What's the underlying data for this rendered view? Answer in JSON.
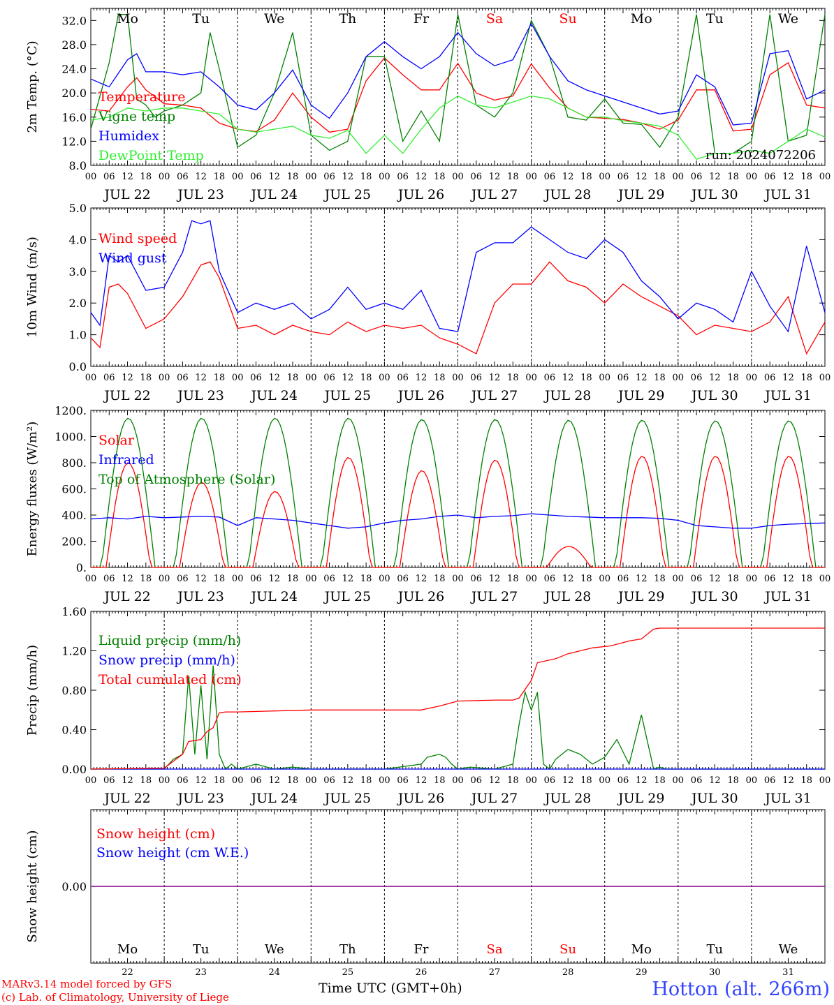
{
  "run_label": "run: 2024072206",
  "station": "Hotton (alt. 266m)",
  "credit_line1": "MARv3.14 model forced by GFS",
  "credit_line2": "(c) Lab. of Climatology, University of Liege",
  "x_axis_title": "Time UTC (GMT+0h)",
  "hour_ticks": [
    "00",
    "06",
    "12",
    "18"
  ],
  "date_labels": [
    "JUL 22",
    "JUL 23",
    "JUL 24",
    "JUL 25",
    "JUL 26",
    "JUL 27",
    "JUL 28",
    "JUL 29",
    "JUL 30",
    "JUL 31"
  ],
  "day_numbers": [
    "22",
    "23",
    "24",
    "25",
    "26",
    "27",
    "28",
    "29",
    "30",
    "31"
  ],
  "weekdays": [
    {
      "label": "Mo",
      "color": "#000000"
    },
    {
      "label": "Tu",
      "color": "#000000"
    },
    {
      "label": "We",
      "color": "#000000"
    },
    {
      "label": "Th",
      "color": "#000000"
    },
    {
      "label": "Fr",
      "color": "#000000"
    },
    {
      "label": "Sa",
      "color": "#ff0000"
    },
    {
      "label": "Su",
      "color": "#ff0000"
    },
    {
      "label": "Mo",
      "color": "#000000"
    },
    {
      "label": "Tu",
      "color": "#000000"
    },
    {
      "label": "We",
      "color": "#000000"
    }
  ],
  "colors": {
    "red": "#ff0000",
    "green": "#008000",
    "blue": "#0000ff",
    "lightgreen": "#33ee33",
    "purple": "#880088"
  },
  "chart_data": [
    {
      "type": "line",
      "ylabel": "2m Temp. (°C)",
      "ylim": [
        8,
        34
      ],
      "yticks": [
        "8.0",
        "12.0",
        "16.0",
        "20.0",
        "24.0",
        "28.0",
        "32.0"
      ],
      "yticks_values": [
        8,
        12,
        16,
        20,
        24,
        28,
        32
      ],
      "x_unit": "hours since JUL 22 00 UTC",
      "xlim": [
        0,
        240
      ],
      "series": [
        {
          "name": "Temperature",
          "color": "#ff0000",
          "x": [
            0,
            6,
            12,
            15,
            18,
            24,
            30,
            36,
            42,
            48,
            54,
            60,
            66,
            72,
            78,
            84,
            90,
            96,
            102,
            108,
            114,
            120,
            126,
            132,
            138,
            144,
            150,
            156,
            162,
            168,
            174,
            180,
            186,
            192,
            198,
            204,
            210,
            216,
            222,
            228,
            234,
            240
          ],
          "y": [
            17.3,
            17,
            21,
            22.5,
            20.5,
            18.2,
            18,
            17.5,
            15,
            14,
            13.6,
            15.5,
            20,
            16,
            13.5,
            14,
            22,
            25.8,
            23,
            20.5,
            20.5,
            24.9,
            20,
            18.8,
            19.5,
            24.8,
            20.8,
            17.5,
            16,
            15.8,
            15.6,
            15,
            14,
            15.5,
            20.5,
            20.5,
            13.7,
            14,
            23,
            25,
            18,
            17.5
          ]
        },
        {
          "name": "Vigne temp",
          "color": "#008000",
          "x": [
            0,
            6,
            9,
            12,
            15,
            18,
            21,
            24,
            30,
            36,
            39,
            42,
            48,
            54,
            60,
            66,
            72,
            78,
            84,
            90,
            96,
            102,
            108,
            114,
            120,
            126,
            132,
            138,
            144,
            150,
            156,
            162,
            168,
            174,
            180,
            186,
            192,
            198,
            204,
            210,
            216,
            222,
            228,
            234,
            240
          ],
          "y": [
            14,
            25,
            33,
            33,
            19,
            18,
            16,
            17,
            18,
            20,
            30,
            24,
            11,
            13,
            20,
            30,
            13,
            10.5,
            12,
            26,
            26,
            12,
            17,
            12,
            33,
            18,
            16,
            20,
            32,
            26,
            16,
            15.5,
            19,
            15,
            14.8,
            11,
            16,
            33,
            10,
            10,
            12,
            33,
            12,
            13,
            33
          ]
        },
        {
          "name": "Humidex",
          "color": "#0000ff",
          "x": [
            0,
            6,
            12,
            15,
            18,
            24,
            30,
            36,
            42,
            48,
            54,
            60,
            66,
            72,
            78,
            84,
            90,
            96,
            102,
            108,
            114,
            120,
            126,
            132,
            138,
            144,
            150,
            156,
            162,
            168,
            174,
            180,
            186,
            192,
            198,
            204,
            210,
            216,
            222,
            228,
            234,
            240
          ],
          "y": [
            22.3,
            21,
            25.5,
            26.5,
            23.5,
            23.5,
            23,
            23.5,
            21,
            18,
            17.2,
            20,
            23.8,
            18,
            15.8,
            20,
            26,
            28.5,
            26,
            24,
            26,
            30,
            26.5,
            24.5,
            25.5,
            31.5,
            26,
            22,
            20.5,
            19.5,
            18.5,
            17.5,
            16.5,
            17,
            23,
            21,
            14.7,
            15,
            26.5,
            27,
            19,
            20.5
          ]
        },
        {
          "name": "DewPoint Temp",
          "color": "#33ee33",
          "x": [
            0,
            6,
            12,
            18,
            24,
            30,
            36,
            42,
            48,
            54,
            60,
            66,
            72,
            78,
            84,
            90,
            96,
            102,
            108,
            114,
            120,
            126,
            132,
            138,
            144,
            150,
            156,
            162,
            168,
            174,
            180,
            186,
            192,
            198,
            204,
            210,
            216,
            222,
            228,
            234,
            240
          ],
          "y": [
            15.5,
            16,
            17.5,
            17,
            17.5,
            17.5,
            17,
            16.5,
            14,
            13.5,
            14,
            14.5,
            13,
            12.5,
            13.8,
            10,
            13,
            10,
            14,
            17.5,
            19.5,
            18,
            17.5,
            18.5,
            19.5,
            19,
            17.5,
            16,
            16,
            15.4,
            15,
            14.5,
            13,
            9,
            10,
            10,
            10.5,
            10,
            12,
            14,
            12.7
          ]
        }
      ],
      "annotation": "run: 2024072206"
    },
    {
      "type": "line",
      "ylabel": "10m Wind (m/s)",
      "ylim": [
        0,
        5
      ],
      "yticks": [
        "0.0",
        "1.0",
        "2.0",
        "3.0",
        "4.0",
        "5.0"
      ],
      "yticks_values": [
        0,
        1,
        2,
        3,
        4,
        5
      ],
      "xlim": [
        0,
        240
      ],
      "series": [
        {
          "name": "Wind speed",
          "color": "#ff0000",
          "x": [
            0,
            3,
            6,
            9,
            12,
            18,
            24,
            30,
            36,
            39,
            42,
            48,
            54,
            60,
            66,
            72,
            78,
            84,
            90,
            96,
            102,
            108,
            114,
            120,
            126,
            132,
            138,
            144,
            150,
            156,
            162,
            168,
            174,
            180,
            186,
            192,
            198,
            204,
            210,
            216,
            222,
            228,
            234,
            240
          ],
          "y": [
            0.9,
            0.6,
            2.5,
            2.6,
            2.3,
            1.2,
            1.5,
            2.2,
            3.2,
            3.3,
            2.8,
            1.2,
            1.3,
            1.0,
            1.3,
            1.1,
            1.0,
            1.4,
            1.1,
            1.3,
            1.2,
            1.3,
            0.9,
            0.7,
            0.4,
            2.0,
            2.6,
            2.6,
            3.3,
            2.7,
            2.5,
            2.0,
            2.6,
            2.2,
            1.9,
            1.6,
            1.0,
            1.3,
            1.2,
            1.1,
            1.4,
            2.2,
            0.4,
            1.4
          ]
        },
        {
          "name": "Wind gust",
          "color": "#0000ff",
          "x": [
            0,
            3,
            6,
            9,
            12,
            18,
            24,
            30,
            33,
            36,
            39,
            42,
            48,
            54,
            60,
            66,
            72,
            78,
            84,
            90,
            96,
            102,
            108,
            114,
            120,
            126,
            132,
            138,
            144,
            150,
            156,
            162,
            168,
            174,
            180,
            186,
            192,
            198,
            204,
            210,
            216,
            222,
            228,
            234,
            240
          ],
          "y": [
            1.7,
            1.3,
            3.5,
            3.3,
            3.5,
            2.4,
            2.5,
            3.6,
            4.6,
            4.5,
            4.6,
            3.0,
            1.7,
            2.0,
            1.8,
            2.0,
            1.5,
            1.8,
            2.5,
            1.8,
            2.0,
            1.8,
            2.4,
            1.2,
            1.1,
            3.6,
            3.9,
            3.9,
            4.4,
            4.0,
            3.6,
            3.4,
            4.0,
            3.6,
            2.7,
            2.2,
            1.5,
            2.0,
            1.8,
            1.4,
            3.0,
            1.9,
            1.1,
            3.8,
            1.7
          ]
        }
      ]
    },
    {
      "type": "line",
      "ylabel": "Energy fluxes (W/m²)",
      "ylim": [
        0,
        1200
      ],
      "yticks": [
        "0.",
        "200.",
        "400.",
        "600.",
        "800.",
        "1000.",
        "1200."
      ],
      "yticks_values": [
        0,
        200,
        400,
        600,
        800,
        1000,
        1200
      ],
      "xlim": [
        0,
        240
      ],
      "day_peaks": {
        "solar": [
          800,
          650,
          580,
          840,
          740,
          820,
          160,
          850,
          850,
          850
        ],
        "top_of_atmosphere": [
          1140,
          1140,
          1140,
          1140,
          1130,
          1130,
          1125,
          1125,
          1120,
          1120
        ]
      },
      "series": [
        {
          "name": "Solar",
          "color": "#ff0000"
        },
        {
          "name": "Infrared",
          "color": "#0000ff",
          "x": [
            0,
            6,
            12,
            18,
            24,
            30,
            36,
            42,
            48,
            54,
            60,
            66,
            72,
            78,
            84,
            90,
            96,
            102,
            108,
            114,
            120,
            126,
            132,
            138,
            144,
            150,
            156,
            162,
            168,
            174,
            180,
            186,
            192,
            198,
            204,
            210,
            216,
            222,
            228,
            234,
            240
          ],
          "y": [
            370,
            380,
            370,
            390,
            380,
            385,
            390,
            385,
            320,
            380,
            370,
            360,
            340,
            320,
            300,
            310,
            340,
            360,
            370,
            390,
            400,
            380,
            390,
            395,
            410,
            400,
            390,
            385,
            380,
            380,
            380,
            375,
            360,
            320,
            310,
            300,
            300,
            320,
            330,
            335,
            340
          ]
        },
        {
          "name": "Top of Atmosphere (Solar)",
          "color": "#008000"
        }
      ]
    },
    {
      "type": "line",
      "ylabel": "Precip (mm/h)",
      "ylim": [
        0,
        1.6
      ],
      "yticks": [
        "0.00",
        "0.40",
        "0.80",
        "1.20",
        "1.60"
      ],
      "yticks_values": [
        0,
        0.4,
        0.8,
        1.2,
        1.6
      ],
      "xlim": [
        0,
        240
      ],
      "series": [
        {
          "name": "Liquid precip (mm/h)",
          "color": "#008000",
          "x": [
            0,
            24,
            27,
            30,
            32,
            34,
            36,
            38,
            40,
            42,
            44,
            46,
            48,
            54,
            60,
            66,
            72,
            96,
            108,
            110,
            114,
            116,
            118,
            120,
            124,
            132,
            138,
            140,
            142,
            144,
            146,
            148,
            150,
            152,
            156,
            160,
            164,
            168,
            172,
            176,
            180,
            184,
            186,
            188,
            190,
            192,
            216,
            240
          ],
          "y": [
            0,
            0,
            0.1,
            0.15,
            0.95,
            0.15,
            0.85,
            0.1,
            1.05,
            0.15,
            0.0,
            0.05,
            0,
            0.05,
            0,
            0.02,
            0,
            0,
            0.05,
            0.12,
            0.15,
            0.12,
            0.05,
            0.0,
            0.02,
            0,
            0.05,
            0.45,
            0.78,
            0.6,
            0.78,
            0.05,
            0.0,
            0.1,
            0.2,
            0.15,
            0.05,
            0.12,
            0.3,
            0.05,
            0.55,
            0.0,
            0.02,
            0,
            0,
            0,
            0,
            0
          ]
        },
        {
          "name": "Snow precip (mm/h)",
          "color": "#0000ff",
          "x": [
            0,
            240
          ],
          "y": [
            0,
            0
          ]
        },
        {
          "name": "Total cumulated (cm)",
          "color": "#ff0000",
          "x": [
            0,
            24,
            30,
            32,
            36,
            38,
            40,
            42,
            44,
            48,
            60,
            72,
            96,
            108,
            114,
            120,
            132,
            138,
            140,
            144,
            146,
            152,
            156,
            164,
            170,
            176,
            180,
            184,
            186,
            192,
            216,
            240
          ],
          "y": [
            0,
            0.01,
            0.15,
            0.28,
            0.3,
            0.38,
            0.42,
            0.57,
            0.58,
            0.58,
            0.59,
            0.6,
            0.6,
            0.6,
            0.64,
            0.69,
            0.7,
            0.7,
            0.72,
            0.9,
            1.08,
            1.12,
            1.17,
            1.23,
            1.25,
            1.3,
            1.32,
            1.42,
            1.43,
            1.43,
            1.43,
            1.43
          ]
        }
      ]
    },
    {
      "type": "line",
      "ylabel": "Snow height (cm)",
      "yticks": [
        "0.00"
      ],
      "yticks_values": [
        0
      ],
      "ylim": [
        -1,
        1
      ],
      "xlim": [
        0,
        240
      ],
      "series": [
        {
          "name": "Snow height (cm)",
          "color": "#ff0000",
          "x": [
            0,
            240
          ],
          "y": [
            0,
            0
          ]
        },
        {
          "name": "Snow height (cm W.E.)",
          "color": "#0000ff",
          "x": [
            0,
            240
          ],
          "y": [
            0,
            0
          ]
        }
      ]
    }
  ]
}
